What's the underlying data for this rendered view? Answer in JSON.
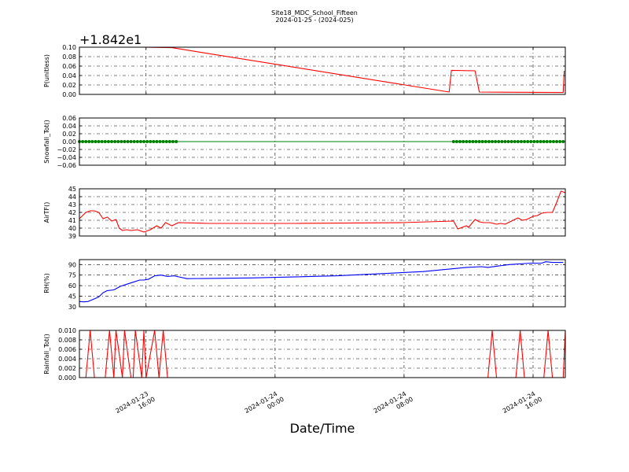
{
  "figure": {
    "title": "Site18_MDC_School_Fifteen",
    "subtitle": "2024-01-25 - (2024-025)",
    "xlabel": "Date/Time"
  },
  "chart_data": [
    {
      "type": "line",
      "ylabel": "P(unitless)",
      "offset_text": "+1.842e1",
      "ylim": [
        0.0,
        0.1
      ],
      "yticks": [
        "0.00",
        "0.02",
        "0.04",
        "0.06",
        "0.08",
        "0.10"
      ],
      "color": "#ff0000",
      "marker": "none",
      "grid": true,
      "x": [
        0,
        2.9,
        4.3,
        17.2,
        17.3,
        18.4,
        18.6,
        22.5,
        22.55
      ],
      "y": [
        0.1,
        0.1,
        0.099,
        0.005,
        0.051,
        0.05,
        0.005,
        0.004,
        0.05
      ]
    },
    {
      "type": "line",
      "ylabel": "Snowfall_Tot()",
      "ylim": [
        -0.06,
        0.06
      ],
      "yticks": [
        "−0.06",
        "−0.04",
        "−0.02",
        "0.00",
        "0.02",
        "0.04",
        "0.06"
      ],
      "color": "#008000",
      "marker": "dot",
      "grid": true,
      "x": [
        0,
        4.5,
        17.5,
        22.5
      ],
      "y": [
        0,
        0,
        0,
        0
      ],
      "marker_x_ranges": [
        [
          0,
          4.6
        ],
        [
          17.4,
          22.6
        ]
      ]
    },
    {
      "type": "line",
      "ylabel": "AirTF()",
      "ylim": [
        39,
        45
      ],
      "yticks": [
        "39",
        "40",
        "41",
        "42",
        "43",
        "44",
        "45"
      ],
      "color": "#ff0000",
      "marker": "none",
      "grid": true,
      "x": [
        0,
        0.3,
        0.5,
        0.7,
        0.9,
        1.1,
        1.3,
        1.5,
        1.7,
        1.85,
        2.0,
        2.2,
        2.4,
        2.7,
        3.0,
        3.3,
        3.6,
        3.8,
        4.0,
        4.3,
        4.6,
        6,
        10,
        15,
        17.4,
        17.6,
        17.9,
        18.0,
        18.1,
        18.4,
        18.6,
        18.8,
        19.1,
        19.4,
        19.6,
        19.8,
        20.1,
        20.4,
        20.6,
        20.8,
        21.1,
        21.3,
        21.5,
        21.75,
        22.0,
        22.2,
        22.4,
        22.6
      ],
      "y": [
        41.2,
        42.0,
        42.2,
        42.2,
        42.0,
        41.2,
        41.4,
        40.9,
        41.1,
        40.0,
        39.7,
        39.8,
        39.7,
        39.8,
        39.5,
        39.8,
        40.3,
        40.0,
        40.7,
        40.3,
        40.7,
        40.6,
        40.6,
        40.7,
        40.9,
        39.9,
        40.2,
        40.3,
        40.1,
        41.1,
        40.8,
        40.7,
        40.7,
        40.5,
        40.6,
        40.5,
        40.9,
        41.3,
        41.0,
        41.1,
        41.5,
        41.6,
        41.9,
        42.0,
        42.0,
        43.3,
        44.7,
        44.5
      ],
      "note": ""
    },
    {
      "type": "line",
      "ylabel": "RH(%)",
      "ylim": [
        30,
        97
      ],
      "yticks": [
        "30",
        "45",
        "60",
        "75",
        "90"
      ],
      "color": "#0000ff",
      "marker": "none",
      "grid": true,
      "x": [
        0,
        0.2,
        0.4,
        0.6,
        0.9,
        1.1,
        1.3,
        1.6,
        1.9,
        2.2,
        2.5,
        2.8,
        3.0,
        3.2,
        3.5,
        3.8,
        4.1,
        4.4,
        5,
        8,
        12,
        16,
        18,
        18.7,
        19.0,
        19.5,
        20,
        21,
        21.5,
        21.7,
        22.0,
        22.5
      ],
      "y": [
        37.5,
        37,
        37.5,
        40,
        44,
        50,
        53,
        54,
        59,
        62,
        65,
        68,
        68,
        69,
        74,
        75,
        73,
        74,
        70,
        71,
        74,
        80,
        86,
        87,
        86,
        88,
        90,
        92,
        92,
        94,
        93,
        93
      ]
    },
    {
      "type": "line",
      "ylabel": "Rainfall_Tot()",
      "ylim": [
        0.0,
        0.01
      ],
      "yticks": [
        "0.000",
        "0.002",
        "0.004",
        "0.006",
        "0.008",
        "0.010"
      ],
      "color": "#ff0000",
      "marker": "none",
      "grid": true,
      "x": [
        0,
        0.3,
        0.5,
        0.7,
        1.2,
        1.4,
        1.6,
        1.7,
        2.0,
        2.1,
        2.4,
        2.5,
        2.6,
        2.9,
        3.0,
        3.1,
        3.5,
        3.7,
        3.9,
        4.1,
        4.3,
        4.5,
        16.0,
        17.8,
        19.0,
        19.2,
        19.4,
        20.3,
        20.5,
        20.7,
        21.6,
        21.8,
        22.0,
        22.5,
        22.6
      ],
      "y": [
        0,
        0,
        0.01,
        0,
        0,
        0.01,
        0,
        0.01,
        0,
        0.01,
        0,
        0,
        0.01,
        0,
        0.01,
        0,
        0.01,
        0,
        0.01,
        0,
        0,
        0,
        0,
        0,
        0,
        0.01,
        0,
        0,
        0.01,
        0,
        0,
        0.01,
        0,
        0,
        0.01
      ]
    }
  ],
  "x_axis": {
    "xlim": [
      0,
      22.6
    ],
    "ticks": [
      {
        "x": 3.1,
        "line1": "2024-01-23",
        "line2": "16:00"
      },
      {
        "x": 9.1,
        "line1": "2024-01-24",
        "line2": "00:00"
      },
      {
        "x": 15.1,
        "line1": "2024-01-24",
        "line2": "08:00"
      },
      {
        "x": 21.1,
        "line1": "2024-01-24",
        "line2": "16:00"
      }
    ]
  }
}
